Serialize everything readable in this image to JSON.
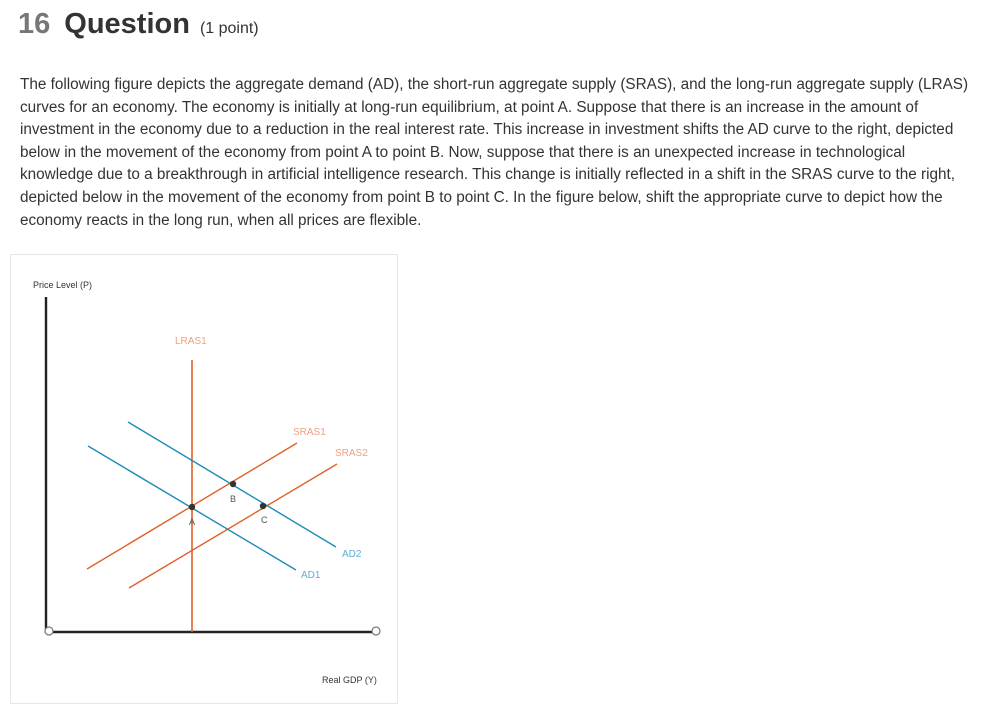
{
  "question": {
    "number": "16",
    "word": "Question",
    "points": "(1 point)",
    "text": "The following figure depicts the aggregate demand (AD), the short-run aggregate supply (SRAS), and the long-run aggregate supply (LRAS) curves for an economy. The economy is initially at long-run equilibrium, at point A. Suppose that there is an increase in the amount of investment in the economy due to a reduction in the real interest rate. This increase in investment shifts the AD curve to the right, depicted below in the movement of the economy from point A to point B. Now, suppose that there is an unexpected increase in technological knowledge due to a breakthrough in artificial intelligence research. This change is initially reflected in a shift in the SRAS curve to the right, depicted below in the movement of the economy from point B to point C. In the figure below, shift the appropriate curve to depict how the economy reacts in the long run, when all prices are flexible."
  },
  "graph": {
    "y_axis_label": "Price Level (P)",
    "x_axis_label": "Real GDP (Y)",
    "curves": {
      "lras1": "LRAS1",
      "sras1": "SRAS1",
      "sras2": "SRAS2",
      "ad1": "AD1",
      "ad2": "AD2"
    },
    "points": {
      "a": "A",
      "b": "B",
      "c": "C"
    },
    "colors": {
      "supply": "#e2602a",
      "supply_label": "#f0a080",
      "demand": "#1e8bb8",
      "demand_label": "#5aaed0",
      "axis": "#222222"
    }
  }
}
